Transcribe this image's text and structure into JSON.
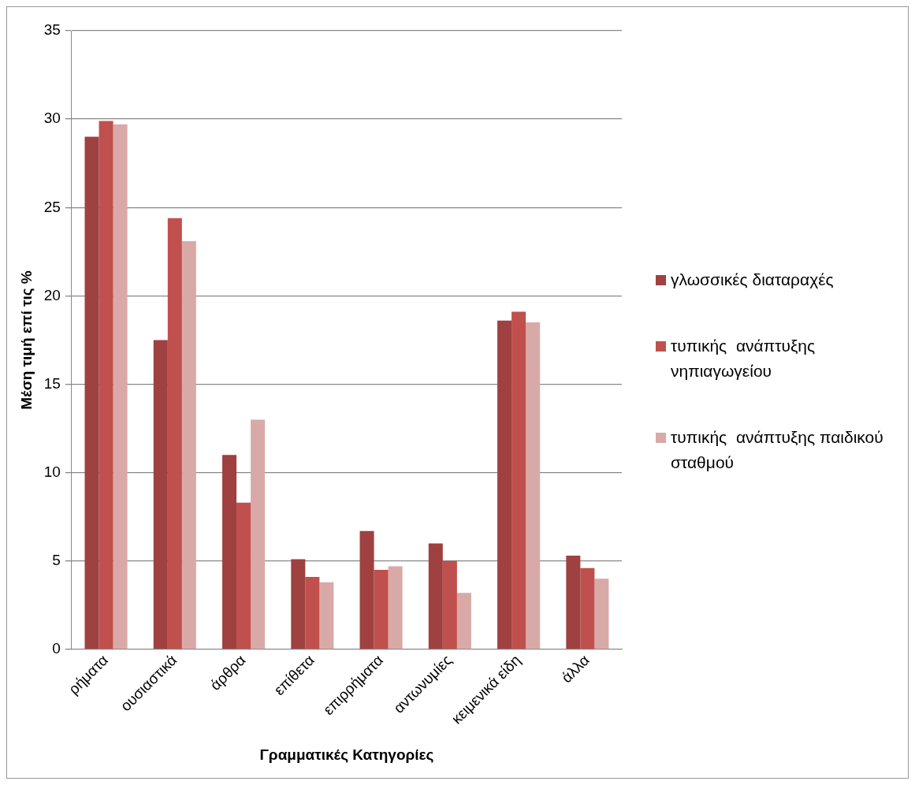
{
  "chart_data": {
    "type": "bar",
    "xlabel": "Γραμματικές Κατηγορίες",
    "ylabel": "Μέση τιμή επί τις %",
    "categories": [
      "ρήματα",
      "ουσιαστικά",
      "άρθρα",
      "επίθετα",
      "επιρρήματα",
      "αντωνυμίες",
      "κειμενικά είδη",
      "άλλα"
    ],
    "series": [
      {
        "name": "γλωσσικές διαταραχές",
        "color": "#9e4140",
        "values": [
          29.0,
          17.5,
          11.0,
          5.1,
          6.7,
          6.0,
          18.6,
          5.3
        ]
      },
      {
        "name": "τυπικής  ανάπτυξης νηπιαγωγείου",
        "color": "#c0504d",
        "values": [
          29.9,
          24.4,
          8.3,
          4.1,
          4.5,
          5.0,
          19.1,
          4.6
        ]
      },
      {
        "name": "τυπικής  ανάπτυξης παιδικού σταθμού",
        "color": "#d9a9a8",
        "values": [
          29.7,
          23.1,
          13.0,
          3.8,
          4.7,
          3.2,
          18.5,
          4.0
        ]
      }
    ],
    "ylim": [
      0,
      35
    ],
    "yticks": [
      0,
      5,
      10,
      15,
      20,
      25,
      30,
      35
    ],
    "grid": "y",
    "legend": "right"
  }
}
